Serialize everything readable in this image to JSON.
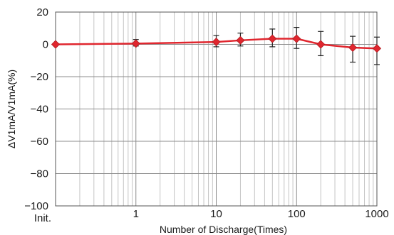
{
  "chart_data": {
    "type": "line",
    "title": "",
    "xlabel": "Number of Discharge(Times)",
    "ylabel": "ΔV1mA/V1mA(%)",
    "x_scale": "log",
    "xlim": [
      0.1,
      1000
    ],
    "ylim": [
      -100,
      20
    ],
    "x_ticks": [
      {
        "value": 0.1,
        "label": "Init."
      },
      {
        "value": 1,
        "label": "1"
      },
      {
        "value": 10,
        "label": "10"
      },
      {
        "value": 100,
        "label": "100"
      },
      {
        "value": 1000,
        "label": "1000"
      }
    ],
    "y_ticks": [
      {
        "value": 20,
        "label": "20"
      },
      {
        "value": 0,
        "label": "0"
      },
      {
        "value": -20,
        "label": "−20"
      },
      {
        "value": -40,
        "label": "−40"
      },
      {
        "value": -60,
        "label": "−60"
      },
      {
        "value": -80,
        "label": "−80"
      },
      {
        "value": -100,
        "label": "−100"
      }
    ],
    "grid": true,
    "series": [
      {
        "color": "#e0262e",
        "marker": "diamond",
        "points": [
          {
            "x": 0.1,
            "y": 0.0,
            "err_low": 0.0,
            "err_high": 0.0
          },
          {
            "x": 1,
            "y": 0.5,
            "err_low": 1.5,
            "err_high": 2.5
          },
          {
            "x": 10,
            "y": 1.5,
            "err_low": 3.0,
            "err_high": 4.0
          },
          {
            "x": 20,
            "y": 2.5,
            "err_low": 3.5,
            "err_high": 4.5
          },
          {
            "x": 50,
            "y": 3.5,
            "err_low": 5.0,
            "err_high": 6.0
          },
          {
            "x": 100,
            "y": 3.5,
            "err_low": 6.0,
            "err_high": 7.0
          },
          {
            "x": 200,
            "y": 0.0,
            "err_low": 7.0,
            "err_high": 8.0
          },
          {
            "x": 500,
            "y": -2.0,
            "err_low": 9.0,
            "err_high": 7.0
          },
          {
            "x": 1000,
            "y": -2.5,
            "err_low": 10.0,
            "err_high": 7.0
          }
        ]
      }
    ]
  }
}
